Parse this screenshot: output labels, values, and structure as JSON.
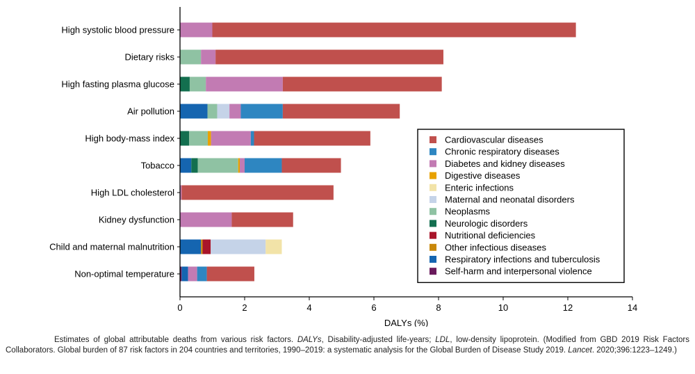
{
  "chart_data": {
    "type": "bar",
    "orientation": "horizontal",
    "stacked": true,
    "xlabel": "DALYs (%)",
    "xlim": [
      0,
      14
    ],
    "xticks": [
      0,
      2,
      4,
      6,
      8,
      10,
      12,
      14
    ],
    "grid": false,
    "legend_position": "right",
    "categories": [
      "High systolic blood pressure",
      "Dietary risks",
      "High fasting plasma glucose",
      "Air pollution",
      "High body-mass index",
      "Tobacco",
      "High LDL cholesterol",
      "Kidney dysfunction",
      "Child and maternal malnutrition",
      "Non-optimal temperature"
    ],
    "series": [
      {
        "name": "Cardiovascular diseases",
        "color": "#c0504d",
        "values": [
          11.25,
          7.05,
          4.92,
          3.62,
          3.6,
          1.83,
          4.7,
          1.9,
          0,
          1.47
        ]
      },
      {
        "name": "Chronic respiratory diseases",
        "color": "#2e86c1",
        "values": [
          0,
          0,
          0,
          1.3,
          0.1,
          1.15,
          0,
          0,
          0,
          0.3
        ]
      },
      {
        "name": "Diabetes and kidney diseases",
        "color": "#c27bb3",
        "values": [
          1.0,
          0.45,
          2.38,
          0.35,
          1.23,
          0.15,
          0.05,
          1.6,
          0,
          0.28
        ]
      },
      {
        "name": "Digestive diseases",
        "color": "#e8a200",
        "values": [
          0,
          0,
          0,
          0,
          0.1,
          0.05,
          0,
          0,
          0,
          0
        ]
      },
      {
        "name": "Enteric infections",
        "color": "#f2e3a8",
        "values": [
          0,
          0,
          0,
          0,
          0,
          0,
          0,
          0,
          0.5,
          0
        ]
      },
      {
        "name": "Maternal and neonatal disorders",
        "color": "#c5d3e8",
        "values": [
          0,
          0,
          0,
          0.38,
          0,
          0,
          0,
          0,
          1.7,
          0
        ]
      },
      {
        "name": "Neoplasms",
        "color": "#8fc2a3",
        "values": [
          0,
          0.65,
          0.5,
          0.3,
          0.58,
          1.25,
          0,
          0,
          0,
          0
        ]
      },
      {
        "name": "Neurologic disorders",
        "color": "#136f4f",
        "values": [
          0,
          0,
          0.3,
          0,
          0.28,
          0.2,
          0,
          0,
          0,
          0
        ]
      },
      {
        "name": "Nutritional deficiencies",
        "color": "#a8152a",
        "values": [
          0,
          0,
          0,
          0,
          0,
          0,
          0,
          0,
          0.25,
          0
        ]
      },
      {
        "name": "Other infectious diseases",
        "color": "#c8880a",
        "values": [
          0,
          0,
          0,
          0,
          0,
          0,
          0,
          0,
          0.05,
          0
        ]
      },
      {
        "name": "Respiratory infections and tuberculosis",
        "color": "#1565b0",
        "values": [
          0,
          0,
          0,
          0.85,
          0,
          0.35,
          0,
          0,
          0.65,
          0.2
        ]
      },
      {
        "name": "Self-harm and interpersonal violence",
        "color": "#6a1a5c",
        "values": [
          0,
          0,
          0,
          0,
          0,
          0,
          0,
          0,
          0,
          0.05
        ]
      }
    ],
    "stack_order": [
      [
        11,
        10,
        7,
        6,
        2,
        0
      ],
      [
        6,
        2,
        0
      ],
      [
        10,
        7,
        6,
        2,
        0
      ],
      [
        10,
        6,
        5,
        2,
        1,
        0
      ],
      [
        7,
        6,
        3,
        2,
        1,
        0
      ],
      [
        10,
        7,
        6,
        3,
        2,
        1,
        0
      ],
      [
        2,
        0
      ],
      [
        2,
        0
      ],
      [
        10,
        9,
        8,
        5,
        4
      ],
      [
        11,
        10,
        2,
        1,
        0
      ]
    ]
  },
  "caption": {
    "text1": "Estimates of global attributable deaths from various risk factors. ",
    "abbr1": "DALYs",
    "text2": ", Disability-adjusted life-years; ",
    "abbr2": "LDL",
    "text3": ", low-density lipoprotein. (Modified from GBD 2019 Risk Factors Collaborators. Global burden of 87 risk factors in 204 countries and territories, 1990–2019: a systematic analysis for the Global Burden of Disease Study 2019. ",
    "journal": "Lancet",
    "text4": ". 2020;396:1223–1249.)"
  }
}
